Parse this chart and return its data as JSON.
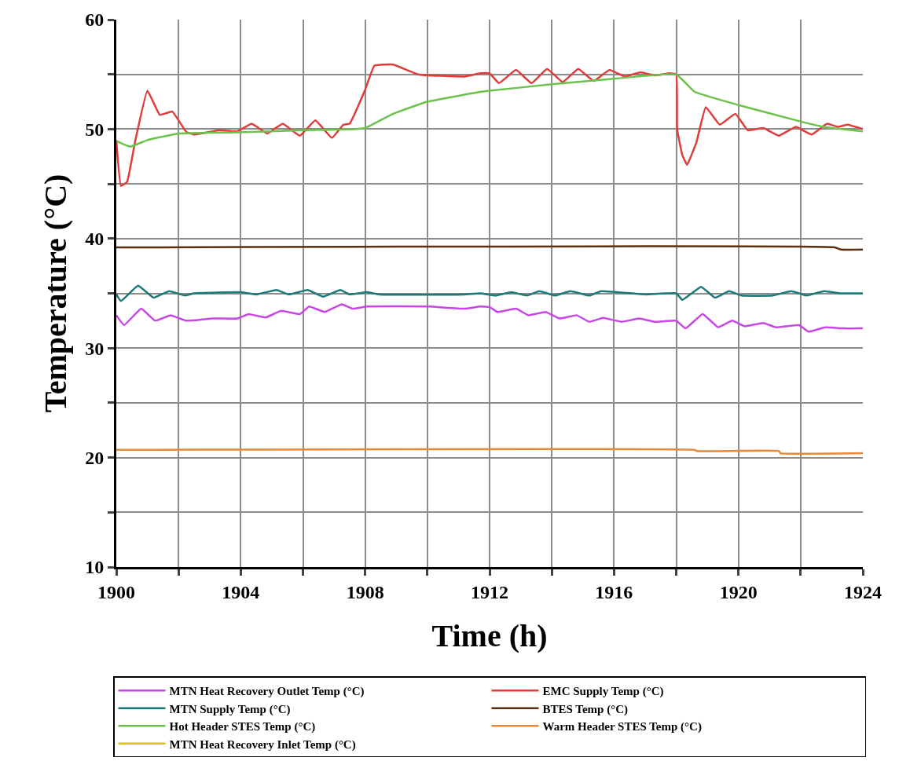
{
  "chart_data": {
    "type": "line",
    "xlabel": "Time (h)",
    "ylabel": "Temperature (°C)",
    "xlim": [
      1900,
      1924
    ],
    "ylim": [
      10,
      60
    ],
    "xticks": [
      1900,
      {
        "value": 1902,
        "label": null
      },
      1904,
      {
        "value": 1906,
        "label": null
      },
      1908,
      {
        "value": 1910,
        "label": null
      },
      1912,
      {
        "value": 1914,
        "label": null
      },
      1916,
      {
        "value": 1918,
        "label": null
      },
      1920,
      {
        "value": 1922,
        "label": null
      },
      1924
    ],
    "yticks": [
      10,
      {
        "value": 15,
        "label": null
      },
      20,
      {
        "value": 25,
        "label": null
      },
      30,
      {
        "value": 35,
        "label": null
      },
      40,
      {
        "value": 45,
        "label": null
      },
      50,
      {
        "value": 55,
        "label": null
      },
      60
    ],
    "grid": true,
    "legend": "bottom",
    "marker": "none",
    "line_style": "solid",
    "series": [
      {
        "name": "MTN Heat Recovery Outlet Temp (°C)",
        "color": "#c845e8",
        "x": [
          1900.0,
          1900.25,
          1900.8,
          1901.25,
          1901.75,
          1902.25,
          1903.1,
          1903.9,
          1904.25,
          1904.8,
          1905.3,
          1905.9,
          1906.2,
          1906.7,
          1907.25,
          1907.6,
          1908.05,
          1910.05,
          1911.2,
          1911.7,
          1912.0,
          1912.25,
          1912.85,
          1913.25,
          1913.8,
          1914.25,
          1914.8,
          1915.2,
          1915.65,
          1916.25,
          1916.8,
          1917.3,
          1918.0,
          1918.3,
          1918.85,
          1919.35,
          1919.8,
          1920.2,
          1920.8,
          1921.2,
          1921.95,
          1922.25,
          1922.8,
          1923.35,
          1924.0
        ],
        "values": [
          33.0,
          32.1,
          33.6,
          32.5,
          33.0,
          32.5,
          32.7,
          32.7,
          33.1,
          32.8,
          33.4,
          33.1,
          33.8,
          33.3,
          34.0,
          33.6,
          33.8,
          33.8,
          33.6,
          33.8,
          33.75,
          33.3,
          33.6,
          33.0,
          33.3,
          32.7,
          33.0,
          32.4,
          32.75,
          32.4,
          32.7,
          32.4,
          32.5,
          31.8,
          33.1,
          31.9,
          32.5,
          32.0,
          32.3,
          31.9,
          32.1,
          31.5,
          31.9,
          31.8,
          31.8
        ]
      },
      {
        "name": "EMC Supply Temp (°C)",
        "color": "#e03c3c",
        "x": [
          1900.0,
          1900.15,
          1900.35,
          1900.6,
          1901.0,
          1901.4,
          1901.8,
          1902.25,
          1902.5,
          1903.3,
          1903.9,
          1904.35,
          1904.85,
          1905.35,
          1905.9,
          1906.4,
          1906.93,
          1907.3,
          1907.5,
          1908.0,
          1908.3,
          1908.9,
          1909.7,
          1911.2,
          1911.7,
          1912.0,
          1912.3,
          1912.85,
          1913.35,
          1913.85,
          1914.35,
          1914.85,
          1915.35,
          1915.85,
          1916.35,
          1916.85,
          1917.3,
          1917.8,
          1918.0,
          1918.03,
          1918.2,
          1918.35,
          1918.65,
          1918.95,
          1919.4,
          1919.9,
          1920.3,
          1920.8,
          1921.3,
          1921.85,
          1922.35,
          1922.85,
          1923.2,
          1923.5,
          1924.0
        ],
        "values": [
          49.0,
          44.8,
          45.2,
          48.8,
          53.5,
          51.3,
          51.6,
          49.75,
          49.5,
          49.9,
          49.8,
          50.5,
          49.6,
          50.5,
          49.4,
          50.8,
          49.2,
          50.4,
          50.5,
          53.6,
          55.8,
          55.9,
          55.0,
          54.8,
          55.1,
          55.1,
          54.2,
          55.4,
          54.2,
          55.5,
          54.3,
          55.5,
          54.4,
          55.4,
          54.8,
          55.2,
          54.9,
          55.1,
          55.0,
          50.0,
          47.6,
          46.75,
          48.8,
          52.0,
          50.4,
          51.4,
          49.9,
          50.1,
          49.4,
          50.2,
          49.5,
          50.5,
          50.2,
          50.4,
          50.0
        ]
      },
      {
        "name": "MTN Supply Temp (°C)",
        "color": "#1a7a78",
        "x": [
          1900.0,
          1900.15,
          1900.7,
          1901.2,
          1901.7,
          1902.2,
          1902.5,
          1904.0,
          1904.5,
          1905.15,
          1905.55,
          1906.15,
          1906.65,
          1907.2,
          1907.5,
          1908.05,
          1908.45,
          1911.2,
          1911.7,
          1912.2,
          1912.7,
          1913.2,
          1913.6,
          1914.1,
          1914.6,
          1915.2,
          1915.6,
          1917.0,
          1918.0,
          1918.2,
          1918.8,
          1919.25,
          1919.7,
          1920.1,
          1921.1,
          1921.7,
          1922.2,
          1922.75,
          1923.3,
          1924.0
        ],
        "values": [
          34.9,
          34.3,
          35.7,
          34.6,
          35.2,
          34.8,
          35.0,
          35.1,
          34.9,
          35.3,
          34.9,
          35.3,
          34.7,
          35.3,
          34.9,
          35.1,
          34.9,
          34.9,
          35.0,
          34.8,
          35.1,
          34.8,
          35.2,
          34.8,
          35.2,
          34.8,
          35.2,
          34.9,
          35.0,
          34.4,
          35.6,
          34.6,
          35.2,
          34.8,
          34.8,
          35.2,
          34.8,
          35.2,
          35.0,
          35.0
        ]
      },
      {
        "name": "BTES Temp (°C)",
        "color": "#5a3010",
        "x": [
          1900.0,
          1923.1,
          1923.3,
          1924.0
        ],
        "values": [
          39.2,
          39.2,
          39.0,
          39.0
        ]
      },
      {
        "name": "Hot Header STES Temp (°C)",
        "color": "#6cc24a",
        "x": [
          1900.0,
          1900.45,
          1901.0,
          1902.0,
          1903.9,
          1906.0,
          1907.65,
          1908.0,
          1908.9,
          1910.0,
          1911.7,
          1912.0,
          1914.0,
          1916.0,
          1918.0,
          1918.6,
          1920.0,
          1922.0,
          1922.75,
          1923.35,
          1924.0
        ],
        "values": [
          48.9,
          48.4,
          49.0,
          49.6,
          49.7,
          49.9,
          50.0,
          50.1,
          51.4,
          52.5,
          53.4,
          53.5,
          54.1,
          54.6,
          55.0,
          53.4,
          52.2,
          50.7,
          50.2,
          50.0,
          49.8
        ]
      },
      {
        "name": "Warm Header STES Temp (°C)",
        "color": "#e8883a",
        "x": [
          1900.0,
          1918.6,
          1918.65,
          1921.3,
          1921.35,
          1924.0
        ],
        "values": [
          20.7,
          20.7,
          20.6,
          20.6,
          20.4,
          20.4
        ]
      },
      {
        "name": "MTN Heat Recovery Inlet Temp (°C)",
        "color": "#e0c000"
      }
    ]
  }
}
